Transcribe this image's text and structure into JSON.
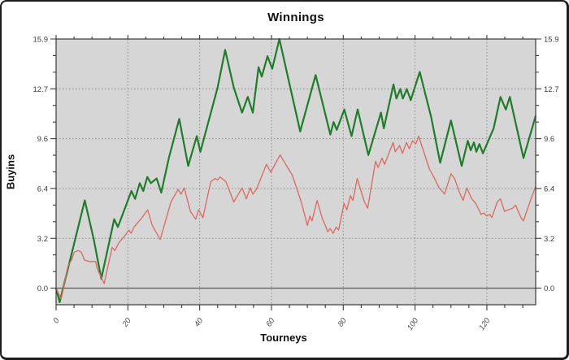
{
  "window": {
    "background": "#ffffff",
    "border_color": "#1c1c1c"
  },
  "chart_data": {
    "type": "line",
    "title": "Winnings",
    "xlabel": "Tourneys",
    "ylabel": "Buyins",
    "xlim": [
      0,
      133.6
    ],
    "ylim": [
      -1.06,
      15.9
    ],
    "plot_bg": "#d6d6d6",
    "grid": {
      "on": true,
      "style": "dotted",
      "color": "#8c8c8c"
    },
    "zero_line_color": "#4f4f4f",
    "axis_color": "#3a3a3a",
    "legend": "none",
    "x_axis": {
      "minor_step": 5,
      "ticks": [
        {
          "v": 0,
          "label": "0"
        },
        {
          "v": 20,
          "label": "20"
        },
        {
          "v": 40,
          "label": "40"
        },
        {
          "v": 60,
          "label": "60"
        },
        {
          "v": 80,
          "label": "80"
        },
        {
          "v": 100,
          "label": "100"
        },
        {
          "v": 120,
          "label": "120"
        }
      ]
    },
    "y_axis": {
      "minor_step": 1.06,
      "labels_on_both_sides": true,
      "ticks": [
        {
          "v": 0,
          "label": "0.0"
        },
        {
          "v": 3.18,
          "label": "3.2"
        },
        {
          "v": 6.36,
          "label": "6.4"
        },
        {
          "v": 9.54,
          "label": "9.6"
        },
        {
          "v": 12.72,
          "label": "12.7"
        },
        {
          "v": 15.9,
          "label": "15.9"
        }
      ]
    },
    "series": [
      {
        "name": "winnings-green",
        "color": "#1f7c2b",
        "width": 2.2,
        "points": [
          [
            0,
            0
          ],
          [
            1,
            -0.9
          ],
          [
            8,
            5.6
          ],
          [
            10.5,
            3.1
          ],
          [
            12.6,
            0.6
          ],
          [
            16.2,
            4.4
          ],
          [
            17.2,
            3.9
          ],
          [
            21,
            6.2
          ],
          [
            22,
            5.7
          ],
          [
            23.3,
            6.7
          ],
          [
            24.3,
            6.2
          ],
          [
            25.4,
            7.1
          ],
          [
            26.4,
            6.7
          ],
          [
            28,
            7.0
          ],
          [
            29.3,
            6.1
          ],
          [
            31.4,
            8.3
          ],
          [
            34.3,
            10.8
          ],
          [
            36.8,
            7.8
          ],
          [
            39.2,
            9.7
          ],
          [
            40.2,
            8.7
          ],
          [
            45,
            12.8
          ],
          [
            47.1,
            15.2
          ],
          [
            49.5,
            12.8
          ],
          [
            51.8,
            11.2
          ],
          [
            53.4,
            12.2
          ],
          [
            54.8,
            11.2
          ],
          [
            56.4,
            14.1
          ],
          [
            57.3,
            13.5
          ],
          [
            58.9,
            14.8
          ],
          [
            60.2,
            14.0
          ],
          [
            62.2,
            15.9
          ],
          [
            68,
            10.0
          ],
          [
            72.3,
            13.6
          ],
          [
            76.4,
            9.8
          ],
          [
            77.3,
            10.6
          ],
          [
            78.2,
            10.1
          ],
          [
            80.3,
            11.4
          ],
          [
            82.3,
            9.7
          ],
          [
            84,
            11.4
          ],
          [
            87,
            8.5
          ],
          [
            90.5,
            11.2
          ],
          [
            91.3,
            10.2
          ],
          [
            94,
            13.0
          ],
          [
            94.8,
            12.1
          ],
          [
            95.9,
            12.7
          ],
          [
            96.6,
            12.1
          ],
          [
            97.7,
            12.7
          ],
          [
            98.8,
            12.0
          ],
          [
            101.3,
            13.8
          ],
          [
            104.5,
            10.9
          ],
          [
            107,
            8.0
          ],
          [
            110,
            10.7
          ],
          [
            113,
            7.8
          ],
          [
            114.7,
            9.4
          ],
          [
            115.5,
            8.8
          ],
          [
            116.4,
            9.3
          ],
          [
            117.1,
            8.7
          ],
          [
            117.9,
            9.2
          ],
          [
            118.9,
            8.6
          ],
          [
            121.9,
            10.2
          ],
          [
            123.8,
            12.2
          ],
          [
            125.3,
            11.4
          ],
          [
            126.4,
            12.2
          ],
          [
            130.2,
            8.3
          ],
          [
            133.6,
            11.0
          ]
        ]
      },
      {
        "name": "winnings-red",
        "color": "#da6a60",
        "width": 1.3,
        "points": [
          [
            0,
            0
          ],
          [
            1.4,
            -0.7
          ],
          [
            3.3,
            1.4
          ],
          [
            4.3,
            1.8
          ],
          [
            5.1,
            2.3
          ],
          [
            6.2,
            2.4
          ],
          [
            7,
            2.3
          ],
          [
            7.9,
            1.8
          ],
          [
            9.2,
            1.7
          ],
          [
            11,
            1.7
          ],
          [
            11.5,
            1.2
          ],
          [
            13.4,
            0.3
          ],
          [
            15.6,
            2.6
          ],
          [
            16.4,
            2.4
          ],
          [
            17.5,
            2.9
          ],
          [
            19,
            3.3
          ],
          [
            20.3,
            3.7
          ],
          [
            20.9,
            3.5
          ],
          [
            21.7,
            3.9
          ],
          [
            23.6,
            4.4
          ],
          [
            25.5,
            5.0
          ],
          [
            26.8,
            4.0
          ],
          [
            29,
            3.1
          ],
          [
            32,
            5.5
          ],
          [
            34,
            6.3
          ],
          [
            34.8,
            6.0
          ],
          [
            35.7,
            6.4
          ],
          [
            37.4,
            4.9
          ],
          [
            38.9,
            4.4
          ],
          [
            39.7,
            5.0
          ],
          [
            40.9,
            4.5
          ],
          [
            43.1,
            6.8
          ],
          [
            44.3,
            7.0
          ],
          [
            45,
            6.9
          ],
          [
            45.7,
            7.1
          ],
          [
            47.3,
            6.8
          ],
          [
            49.5,
            5.5
          ],
          [
            51.8,
            6.4
          ],
          [
            53,
            5.7
          ],
          [
            54.1,
            6.4
          ],
          [
            54.8,
            6.0
          ],
          [
            55.8,
            6.3
          ],
          [
            58.6,
            7.9
          ],
          [
            59.8,
            7.4
          ],
          [
            62.4,
            8.5
          ],
          [
            65.8,
            7.2
          ],
          [
            67.3,
            6.2
          ],
          [
            68.4,
            5.4
          ],
          [
            70,
            4.0
          ],
          [
            70.7,
            4.6
          ],
          [
            71.3,
            4.3
          ],
          [
            72.7,
            5.6
          ],
          [
            74.1,
            4.5
          ],
          [
            75.7,
            3.6
          ],
          [
            76.3,
            3.8
          ],
          [
            77.2,
            3.5
          ],
          [
            78,
            3.9
          ],
          [
            78.7,
            3.7
          ],
          [
            80.2,
            5.4
          ],
          [
            81,
            5.0
          ],
          [
            82,
            5.9
          ],
          [
            82.7,
            5.6
          ],
          [
            83.9,
            7.0
          ],
          [
            85.9,
            5.5
          ],
          [
            86.8,
            5.1
          ],
          [
            89,
            8.1
          ],
          [
            89.7,
            7.7
          ],
          [
            90.8,
            8.3
          ],
          [
            91.5,
            7.9
          ],
          [
            93.9,
            9.3
          ],
          [
            94.5,
            8.7
          ],
          [
            95.7,
            9.1
          ],
          [
            96.5,
            8.6
          ],
          [
            97.6,
            9.3
          ],
          [
            98.4,
            8.9
          ],
          [
            99.3,
            9.4
          ],
          [
            100.2,
            9.2
          ],
          [
            101,
            9.7
          ],
          [
            103,
            8.3
          ],
          [
            104,
            7.6
          ],
          [
            105.2,
            7.1
          ],
          [
            106.7,
            6.4
          ],
          [
            107.5,
            6.2
          ],
          [
            108.2,
            6.0
          ],
          [
            110,
            7.3
          ],
          [
            111,
            7.0
          ],
          [
            112.4,
            6.1
          ],
          [
            113.4,
            5.6
          ],
          [
            114.4,
            6.4
          ],
          [
            115.8,
            5.7
          ],
          [
            116.9,
            5.4
          ],
          [
            118.4,
            4.7
          ],
          [
            119.1,
            4.8
          ],
          [
            120,
            4.6
          ],
          [
            120.8,
            4.7
          ],
          [
            121.4,
            4.5
          ],
          [
            122.9,
            5.5
          ],
          [
            123.8,
            5.7
          ],
          [
            124.9,
            4.9
          ],
          [
            126,
            5.0
          ],
          [
            127.2,
            5.1
          ],
          [
            128,
            5.3
          ],
          [
            129.5,
            4.5
          ],
          [
            130.2,
            4.3
          ],
          [
            132,
            5.5
          ],
          [
            133.6,
            6.5
          ]
        ]
      }
    ]
  }
}
